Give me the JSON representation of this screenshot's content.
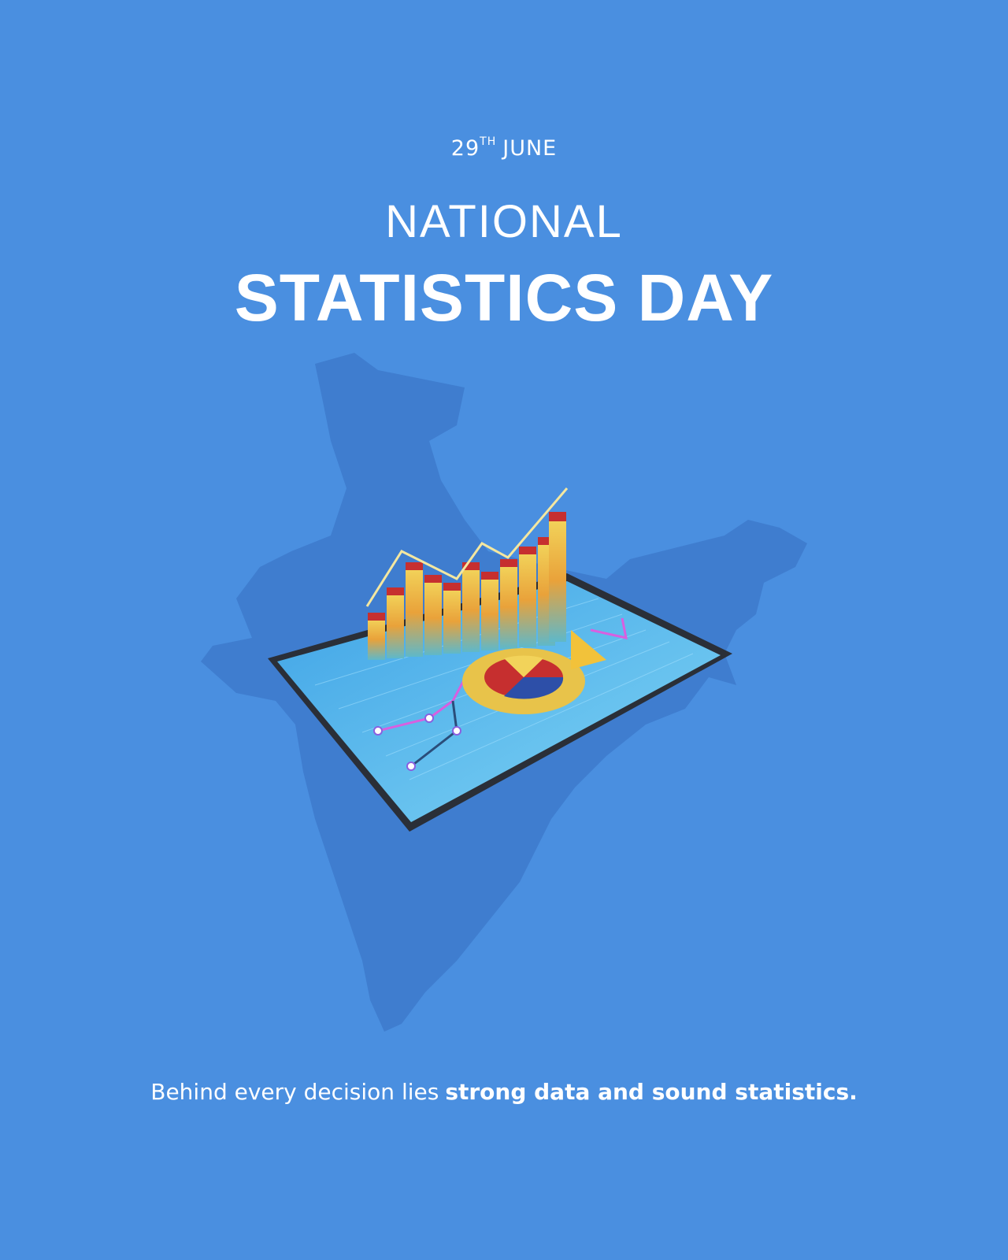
{
  "date": {
    "day": "29",
    "suffix": "TH",
    "month": "JUNE"
  },
  "title": {
    "line1": "NATIONAL",
    "line2": "STATISTICS DAY"
  },
  "tagline": {
    "regular": "Behind every decision lies",
    "bold": "strong data and sound statistics."
  }
}
